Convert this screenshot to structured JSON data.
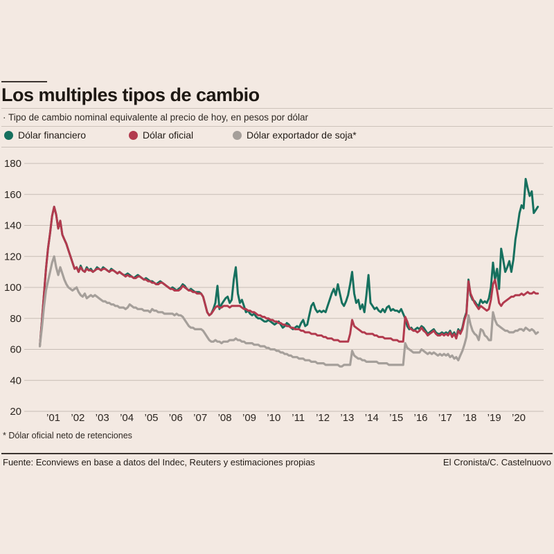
{
  "colors": {
    "background": "#f3e9e2",
    "grid": "#c7bdb5",
    "rule_dark": "#3b3430",
    "rule_light": "#ccc2ba",
    "text": "#211b16"
  },
  "header": {
    "title": "Los multiples tipos de cambio",
    "subtitle": "· Tipo de cambio nominal equivalente al precio de hoy, en pesos por dólar"
  },
  "footer": {
    "note": "* Dólar oficial neto de retenciones",
    "source": "Fuente: Econviews en base a datos del Indec, Reuters y estimaciones propias",
    "credit": "El Cronista/C. Castelnuovo"
  },
  "chart_data": {
    "type": "line",
    "title": "Los multiples tipos de cambio",
    "subtitle": "Tipo de cambio nominal equivalente al precio de hoy, en pesos por dólar",
    "ylabel": "pesos por dólar",
    "grid": true,
    "legend_position": "top",
    "y_ticks": [
      180,
      160,
      140,
      120,
      100,
      80,
      60,
      40,
      20
    ],
    "ylim": [
      20,
      186
    ],
    "x_ticks": [
      "’01",
      "’02",
      "’03",
      "’04",
      "’05",
      "’06",
      "’07",
      "’08",
      "’09",
      "’10",
      "’11",
      "’12",
      "’13",
      "’14",
      "’15",
      "’16",
      "’17",
      "’18",
      "’19",
      "’20"
    ],
    "x_tick_years": [
      2001,
      2002,
      2003,
      2004,
      2005,
      2006,
      2007,
      2008,
      2009,
      2010,
      2011,
      2012,
      2013,
      2014,
      2015,
      2016,
      2017,
      2018,
      2019,
      2020
    ],
    "start_t": 2000.45,
    "points_per_year": 12,
    "series": [
      {
        "name": "Dólar financiero",
        "color": "#16705e",
        "width": 3,
        "values": [
          62,
          78,
          95,
          112,
          125,
          135,
          146,
          152,
          147,
          138,
          143,
          134,
          131,
          128,
          124,
          120,
          116,
          112,
          113,
          110,
          114,
          111,
          110,
          113,
          111,
          112,
          110,
          111,
          113,
          112,
          111,
          113,
          112,
          111,
          110,
          112,
          111,
          110,
          109,
          110,
          109,
          108,
          108,
          109,
          108,
          107,
          106,
          107,
          108,
          107,
          106,
          105,
          106,
          105,
          104,
          104,
          103,
          102,
          103,
          104,
          103,
          102,
          101,
          100,
          99,
          100,
          99,
          98,
          99,
          100,
          102,
          101,
          99,
          98,
          99,
          98,
          97,
          97,
          97,
          96,
          94,
          89,
          84,
          82,
          83,
          86,
          90,
          101,
          86,
          89,
          91,
          93,
          94,
          90,
          92,
          105,
          113,
          96,
          90,
          92,
          88,
          84,
          85,
          83,
          82,
          83,
          81,
          80,
          80,
          79,
          78,
          78,
          79,
          78,
          77,
          76,
          77,
          78,
          76,
          74,
          75,
          77,
          76,
          74,
          73,
          74,
          75,
          74,
          77,
          79,
          75,
          76,
          82,
          88,
          90,
          86,
          84,
          85,
          84,
          85,
          84,
          88,
          92,
          96,
          99,
          95,
          102,
          96,
          90,
          88,
          91,
          95,
          102,
          110,
          96,
          90,
          92,
          86,
          89,
          84,
          95,
          108,
          90,
          88,
          86,
          87,
          85,
          84,
          86,
          84,
          87,
          88,
          85,
          86,
          85,
          85,
          84,
          86,
          83,
          80,
          75,
          73,
          74,
          72,
          73,
          74,
          73,
          75,
          74,
          72,
          70,
          71,
          72,
          73,
          71,
          70,
          70,
          71,
          70,
          71,
          70,
          72,
          69,
          71,
          68,
          73,
          71,
          74,
          80,
          84,
          105,
          95,
          92,
          91,
          89,
          88,
          92,
          90,
          91,
          90,
          93,
          100,
          116,
          105,
          112,
          99,
          125,
          118,
          110,
          113,
          117,
          110,
          118,
          131,
          139,
          148,
          153,
          151,
          170,
          164,
          159,
          162,
          148,
          150,
          152
        ]
      },
      {
        "name": "Dólar oficial",
        "color": "#b23a4e",
        "width": 3,
        "values": [
          62,
          78,
          95,
          112,
          125,
          135,
          146,
          152,
          147,
          138,
          143,
          134,
          131,
          128,
          124,
          120,
          116,
          112,
          113,
          110,
          113,
          111,
          110,
          112,
          111,
          111,
          110,
          111,
          112,
          112,
          111,
          112,
          112,
          111,
          110,
          111,
          111,
          110,
          109,
          110,
          109,
          108,
          107,
          108,
          107,
          107,
          106,
          106,
          107,
          107,
          106,
          105,
          105,
          104,
          104,
          103,
          103,
          102,
          102,
          103,
          103,
          102,
          101,
          100,
          99,
          99,
          98,
          98,
          98,
          99,
          101,
          100,
          99,
          98,
          98,
          97,
          97,
          96,
          96,
          96,
          94,
          89,
          84,
          82,
          83,
          85,
          87,
          88,
          87,
          87,
          88,
          88,
          88,
          87,
          88,
          88,
          88,
          88,
          88,
          87,
          86,
          86,
          85,
          85,
          84,
          84,
          83,
          82,
          82,
          81,
          81,
          80,
          80,
          79,
          79,
          78,
          78,
          77,
          77,
          76,
          76,
          75,
          75,
          74,
          74,
          73,
          73,
          73,
          72,
          72,
          71,
          71,
          71,
          70,
          70,
          70,
          69,
          69,
          69,
          68,
          68,
          67,
          67,
          67,
          66,
          66,
          66,
          65,
          65,
          65,
          65,
          65,
          70,
          79,
          75,
          74,
          73,
          72,
          71,
          71,
          70,
          70,
          70,
          70,
          69,
          69,
          68,
          68,
          68,
          67,
          67,
          67,
          67,
          66,
          66,
          66,
          65,
          65,
          65,
          81,
          78,
          74,
          73,
          72,
          72,
          71,
          72,
          74,
          72,
          71,
          69,
          70,
          71,
          72,
          70,
          69,
          69,
          70,
          69,
          70,
          69,
          71,
          68,
          70,
          67,
          72,
          70,
          73,
          79,
          83,
          104,
          96,
          93,
          90,
          88,
          86,
          88,
          87,
          86,
          85,
          86,
          92,
          102,
          105,
          98,
          90,
          88,
          90,
          91,
          92,
          93,
          94,
          94,
          95,
          95,
          95,
          96,
          95,
          96,
          97,
          96,
          96,
          97,
          96,
          96
        ]
      },
      {
        "name": "Dólar exportador de soja*",
        "color": "#a59f9a",
        "width": 3.2,
        "values": [
          62,
          74,
          87,
          98,
          104,
          110,
          116,
          120,
          113,
          108,
          113,
          109,
          105,
          102,
          100,
          99,
          98,
          99,
          100,
          97,
          95,
          94,
          96,
          93,
          94,
          95,
          94,
          95,
          94,
          93,
          92,
          91,
          91,
          90,
          90,
          89,
          89,
          88,
          88,
          87,
          87,
          87,
          86,
          87,
          89,
          88,
          87,
          87,
          86,
          86,
          86,
          85,
          85,
          85,
          84,
          86,
          85,
          85,
          84,
          84,
          84,
          83,
          83,
          83,
          83,
          83,
          82,
          83,
          82,
          82,
          81,
          79,
          77,
          75,
          74,
          74,
          73,
          73,
          73,
          73,
          72,
          70,
          68,
          66,
          65,
          65,
          66,
          65,
          65,
          64,
          65,
          65,
          65,
          66,
          66,
          66,
          67,
          66,
          66,
          65,
          65,
          64,
          64,
          64,
          64,
          63,
          63,
          63,
          62,
          62,
          62,
          61,
          61,
          60,
          60,
          60,
          59,
          59,
          58,
          58,
          57,
          57,
          56,
          56,
          55,
          55,
          55,
          54,
          54,
          54,
          53,
          53,
          53,
          52,
          52,
          52,
          51,
          51,
          51,
          51,
          50,
          50,
          50,
          50,
          50,
          50,
          50,
          49,
          49,
          50,
          50,
          50,
          50,
          59,
          56,
          55,
          54,
          54,
          53,
          53,
          52,
          52,
          52,
          52,
          52,
          52,
          51,
          51,
          51,
          51,
          51,
          50,
          50,
          50,
          50,
          50,
          50,
          50,
          50,
          64,
          61,
          60,
          59,
          58,
          58,
          58,
          58,
          60,
          59,
          58,
          57,
          58,
          57,
          58,
          57,
          56,
          57,
          56,
          57,
          56,
          57,
          55,
          56,
          54,
          55,
          53,
          56,
          59,
          63,
          68,
          82,
          76,
          72,
          70,
          69,
          66,
          73,
          72,
          69,
          68,
          66,
          66,
          84,
          79,
          76,
          75,
          74,
          73,
          72,
          72,
          71,
          71,
          71,
          72,
          72,
          73,
          73,
          72,
          74,
          73,
          72,
          73,
          72,
          70,
          71
        ]
      }
    ]
  }
}
